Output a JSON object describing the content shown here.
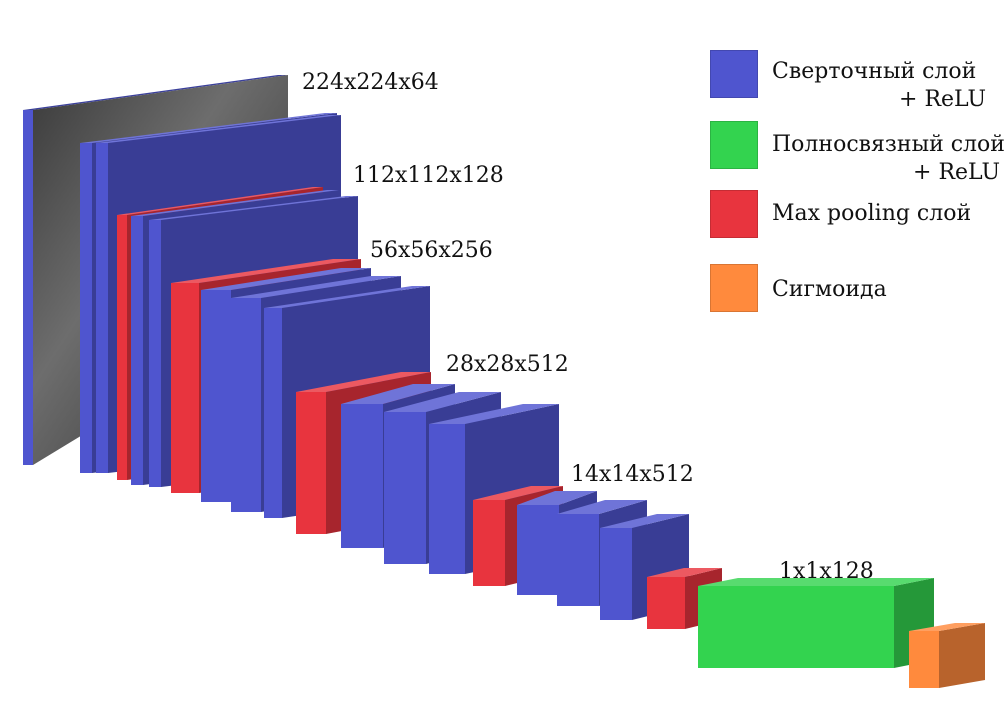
{
  "colors": {
    "conv": "#4f55cf",
    "fc": "#33d34f",
    "pool": "#e8343e",
    "sigmoid": "#ff8a3d"
  },
  "dimension_labels": [
    "224x224x64",
    "112x112x128",
    "56x56x256",
    "28x28x512",
    "14x14x512",
    "1x1x128"
  ],
  "legend": [
    {
      "color": "conv",
      "line1": "Сверточный слой",
      "line2": "+ ReLU"
    },
    {
      "color": "fc",
      "line1": "Полносвязный слой",
      "line2": "+ ReLU"
    },
    {
      "color": "pool",
      "line1": "Max pooling слой",
      "line2": ""
    },
    {
      "color": "sigmoid",
      "line1": "Сигмоида",
      "line2": ""
    }
  ],
  "architecture": [
    {
      "type": "input"
    },
    {
      "type": "conv"
    },
    {
      "type": "conv"
    },
    {
      "type": "pool"
    },
    {
      "type": "conv"
    },
    {
      "type": "conv"
    },
    {
      "type": "pool"
    },
    {
      "type": "conv"
    },
    {
      "type": "conv"
    },
    {
      "type": "conv"
    },
    {
      "type": "pool"
    },
    {
      "type": "conv"
    },
    {
      "type": "conv"
    },
    {
      "type": "conv"
    },
    {
      "type": "pool"
    },
    {
      "type": "conv"
    },
    {
      "type": "conv"
    },
    {
      "type": "conv"
    },
    {
      "type": "pool"
    },
    {
      "type": "fc"
    },
    {
      "type": "sigmoid"
    }
  ]
}
